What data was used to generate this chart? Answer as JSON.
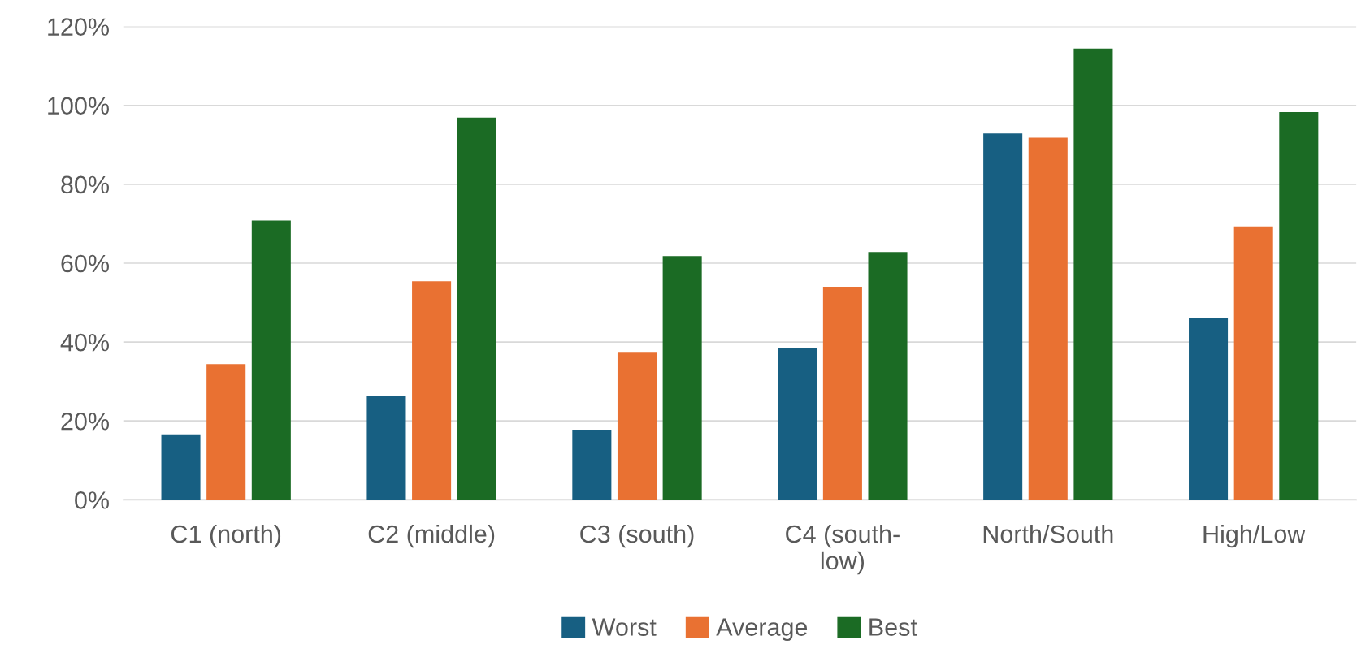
{
  "chart_data": {
    "type": "bar",
    "categories": [
      "C1 (north)",
      "C2 (middle)",
      "C3 (south)",
      "C4 (south-\nlow)",
      "North/South",
      "High/Low"
    ],
    "series": [
      {
        "name": "Worst",
        "color": "#175f82",
        "values": [
          16.6,
          26.4,
          17.8,
          38.5,
          92.9,
          46.2
        ]
      },
      {
        "name": "Average",
        "color": "#e97132",
        "values": [
          34.4,
          55.4,
          37.5,
          54,
          91.8,
          69.3
        ]
      },
      {
        "name": "Best",
        "color": "#1b6b24",
        "values": [
          70.8,
          96.9,
          61.8,
          62.8,
          114.4,
          98.3
        ]
      }
    ],
    "ylim": [
      0,
      120
    ],
    "yticks": [
      {
        "value": 0,
        "label": "0%"
      },
      {
        "value": 20,
        "label": "20%"
      },
      {
        "value": 40,
        "label": "40%"
      },
      {
        "value": 60,
        "label": "60%"
      },
      {
        "value": 80,
        "label": "80%"
      },
      {
        "value": 100,
        "label": "100%"
      },
      {
        "value": 120,
        "label": "120%"
      }
    ],
    "grid": "y",
    "legend": "bottom"
  }
}
